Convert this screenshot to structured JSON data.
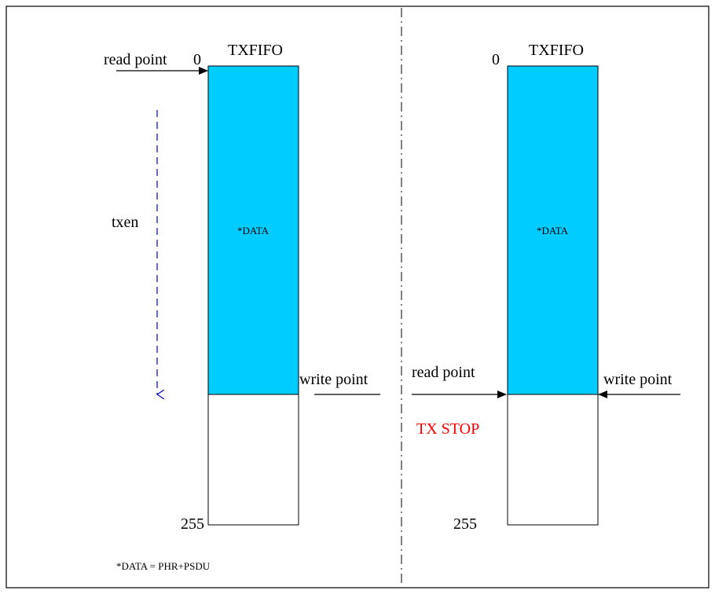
{
  "left_panel": {
    "fifo_title": "TXFIFO",
    "read_point_label": "read point",
    "top_index": "0",
    "bottom_index": "255",
    "data_label": "*DATA",
    "txen_label": "txen",
    "write_point_label": "write point"
  },
  "right_panel": {
    "fifo_title": "TXFIFO",
    "top_index": "0",
    "bottom_index": "255",
    "data_label": "*DATA",
    "read_point_label": "read point",
    "write_point_label": "write point",
    "tx_stop_label": "TX STOP"
  },
  "footnote": "*DATA = PHR+PSDU",
  "colors": {
    "data_fill": "#00ccff",
    "txen_arrow": "#0000cc",
    "tx_stop": "#ff0000",
    "line": "#000000"
  }
}
